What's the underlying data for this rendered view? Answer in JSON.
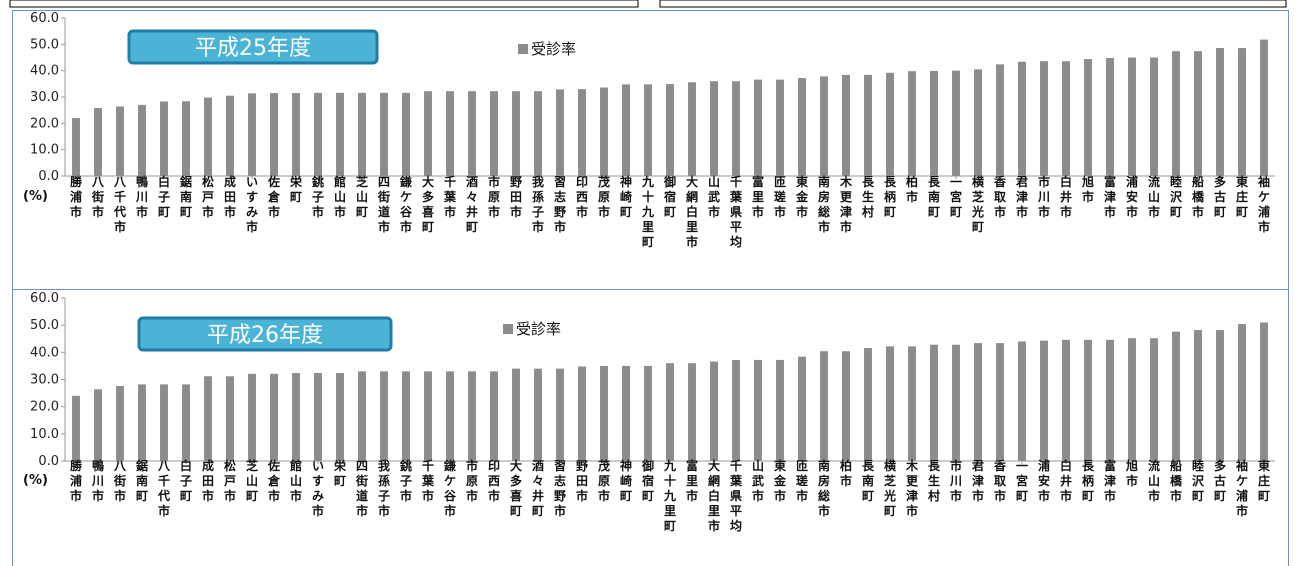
{
  "colors": {
    "bar": "#8c8c8c",
    "axis": "#9a9a9a",
    "frame": "#6b8fc9",
    "badge_fill": "#4bb3d6",
    "badge_stroke": "#1f7ea8",
    "badge_text": "#ffffff"
  },
  "chart_data": [
    {
      "type": "bar",
      "title": "平成25年度",
      "legend": "受診率",
      "legend_position": "top-center",
      "unit_label": "(%)",
      "ylim": [
        0,
        60
      ],
      "yticks": [
        "0.0",
        "10.0",
        "20.0",
        "30.0",
        "40.0",
        "50.0",
        "60.0"
      ],
      "grid": false,
      "categories": [
        "勝浦市",
        "八街市",
        "八千代市",
        "鴨川市",
        "白子町",
        "鋸南町",
        "松戸市",
        "成田市",
        "いすみ市",
        "佐倉市",
        "栄町",
        "銚子市",
        "館山市",
        "芝山町",
        "四街道市",
        "鎌ケ谷市",
        "大多喜町",
        "千葉市",
        "酒々井町",
        "市原市",
        "野田市",
        "我孫子市",
        "習志野市",
        "印西市",
        "茂原市",
        "神崎町",
        "九十九里町",
        "御宿町",
        "大網白里市",
        "山武市",
        "千葉県平均",
        "富里市",
        "匝瑳市",
        "東金市",
        "南房総市",
        "木更津市",
        "長生村",
        "長柄町",
        "柏市",
        "長南町",
        "一宮町",
        "横芝光町",
        "香取市",
        "君津市",
        "市川市",
        "白井市",
        "旭市",
        "富津市",
        "浦安市",
        "流山市",
        "睦沢町",
        "船橋市",
        "多古町",
        "東庄町",
        "袖ケ浦市"
      ],
      "values": [
        22.0,
        25.8,
        26.4,
        27.0,
        28.3,
        28.4,
        29.8,
        30.5,
        31.4,
        31.5,
        31.5,
        31.6,
        31.6,
        31.6,
        31.6,
        31.6,
        32.2,
        32.2,
        32.2,
        32.2,
        32.2,
        32.2,
        32.9,
        33.0,
        33.6,
        34.8,
        34.8,
        34.9,
        35.6,
        36.0,
        36.0,
        36.6,
        36.6,
        37.2,
        37.8,
        38.4,
        38.4,
        39.2,
        39.8,
        39.9,
        40.0,
        40.5,
        42.4,
        43.4,
        43.6,
        43.6,
        44.4,
        44.8,
        45.0,
        45.0,
        47.4,
        47.4,
        48.6,
        48.6,
        51.8
      ]
    },
    {
      "type": "bar",
      "title": "平成26年度",
      "legend": "受診率",
      "legend_position": "top-center",
      "unit_label": "(%)",
      "ylim": [
        0,
        60
      ],
      "yticks": [
        "0.0",
        "10.0",
        "20.0",
        "30.0",
        "40.0",
        "50.0",
        "60.0"
      ],
      "grid": false,
      "categories": [
        "勝浦市",
        "鴨川市",
        "八街市",
        "鋸南町",
        "八千代市",
        "白子町",
        "成田市",
        "松戸市",
        "芝山町",
        "佐倉市",
        "館山市",
        "いすみ市",
        "栄町",
        "四街道市",
        "我孫子市",
        "銚子市",
        "千葉市",
        "鎌ケ谷市",
        "市原市",
        "印西市",
        "大多喜町",
        "酒々井町",
        "習志野市",
        "野田市",
        "茂原市",
        "神崎町",
        "御宿町",
        "九十九里町",
        "富里市",
        "大網白里市",
        "千葉県平均",
        "山武市",
        "東金市",
        "匝瑳市",
        "南房総市",
        "柏市",
        "長南町",
        "横芝光町",
        "木更津市",
        "長生村",
        "市川市",
        "君津市",
        "香取市",
        "一宮町",
        "浦安市",
        "白井市",
        "長柄町",
        "富津市",
        "旭市",
        "流山市",
        "船橋市",
        "睦沢町",
        "多古町",
        "袖ケ浦市",
        "東庄町"
      ],
      "values": [
        24.0,
        26.4,
        27.6,
        28.2,
        28.2,
        28.2,
        31.2,
        31.2,
        32.1,
        32.1,
        32.4,
        32.4,
        32.4,
        33.0,
        33.0,
        33.0,
        33.0,
        33.0,
        33.0,
        33.0,
        34.0,
        34.0,
        34.0,
        34.8,
        35.0,
        35.0,
        35.0,
        36.0,
        36.0,
        36.6,
        37.2,
        37.2,
        37.2,
        38.4,
        40.4,
        40.4,
        41.6,
        42.2,
        42.2,
        42.8,
        42.8,
        43.4,
        43.4,
        44.0,
        44.3,
        44.6,
        44.6,
        44.6,
        45.2,
        45.2,
        47.6,
        48.2,
        48.2,
        50.4,
        51.0
      ]
    }
  ]
}
